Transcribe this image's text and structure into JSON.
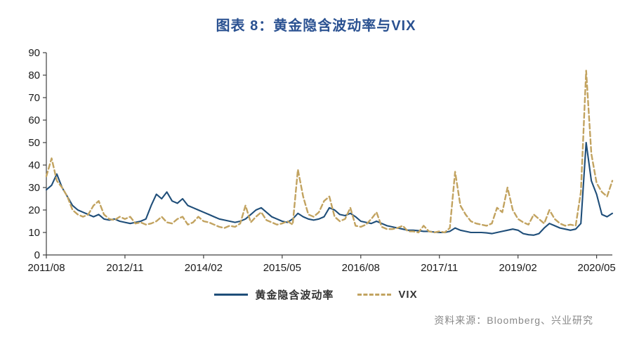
{
  "title": "图表 8：黄金隐含波动率与VIX",
  "source": "资料来源：Bloomberg、兴业研究",
  "colors": {
    "title": "#2a5191",
    "gold_iv_line": "#1F4E79",
    "vix_line": "#C2A360",
    "axis": "#404040",
    "tick_label": "#1a1a1a",
    "source_text": "#888888"
  },
  "chart_data": {
    "type": "line",
    "title": "图表 8：黄金隐含波动率与VIX",
    "xlabel": "",
    "ylabel": "",
    "ylim": [
      0,
      90
    ],
    "y_ticks": [
      0,
      10,
      20,
      30,
      40,
      50,
      60,
      70,
      80,
      90
    ],
    "grid": false,
    "legend_position": "bottom",
    "x_unit": "month-index from 2011/08",
    "x_ticks": [
      {
        "index": 0,
        "label": "2011/08"
      },
      {
        "index": 15,
        "label": "2012/11"
      },
      {
        "index": 30,
        "label": "2014/02"
      },
      {
        "index": 45,
        "label": "2015/05"
      },
      {
        "index": 60,
        "label": "2016/08"
      },
      {
        "index": 75,
        "label": "2017/11"
      },
      {
        "index": 90,
        "label": "2019/02"
      },
      {
        "index": 105,
        "label": "2020/05"
      }
    ],
    "series": [
      {
        "name": "黄金隐含波动率",
        "style": "solid",
        "color": "#1F4E79",
        "values": [
          29,
          31,
          36,
          30,
          26,
          22,
          20,
          19,
          18,
          17,
          18,
          16,
          15.5,
          16,
          15,
          14.5,
          14,
          14.5,
          15,
          16,
          22,
          27,
          25,
          28,
          24,
          23,
          25,
          22,
          21,
          20,
          19,
          18,
          17,
          16,
          15.5,
          15,
          14.5,
          15,
          16,
          18,
          20,
          21,
          19,
          17,
          16,
          15,
          14.5,
          16,
          18.5,
          17,
          16,
          15.5,
          16,
          17,
          21,
          20,
          18,
          17.5,
          18.5,
          17,
          15,
          14.5,
          14,
          15,
          14,
          13,
          12.5,
          12,
          11.5,
          11,
          11,
          10.8,
          10.5,
          10.5,
          10.2,
          10,
          10,
          10.5,
          12,
          11,
          10.5,
          10,
          10,
          10,
          9.8,
          9.5,
          10,
          10.5,
          11,
          11.5,
          11,
          9.5,
          9,
          8.8,
          9.5,
          12,
          14,
          13,
          12,
          11.5,
          11,
          11.5,
          14,
          50,
          33,
          27,
          18,
          17,
          18.5
        ]
      },
      {
        "name": "VIX",
        "style": "dashed",
        "color": "#C2A360",
        "values": [
          35,
          43,
          33,
          30,
          26,
          20,
          18,
          17,
          18,
          22,
          24,
          18,
          16,
          15.5,
          17,
          16,
          17,
          14,
          14.5,
          13.5,
          14,
          15,
          17,
          14.5,
          14,
          16,
          17,
          13.5,
          14.5,
          17,
          15,
          14.5,
          13.5,
          12.5,
          12,
          13,
          12.5,
          14,
          22,
          14.5,
          17,
          19,
          15.5,
          14.5,
          13.5,
          14,
          15,
          13.5,
          38,
          26,
          18,
          17,
          19,
          24,
          26,
          17,
          15,
          16,
          21,
          13,
          12.5,
          13.5,
          16,
          19,
          12.5,
          11.5,
          11.5,
          12,
          13,
          10.5,
          10.5,
          10,
          13,
          10.5,
          10,
          10.5,
          10,
          12,
          37,
          22,
          18,
          15,
          14,
          13.5,
          13,
          14,
          21,
          19,
          30,
          20,
          16,
          14.5,
          13.5,
          18,
          16,
          14,
          20,
          16,
          14,
          13,
          13.5,
          13,
          28,
          82,
          45,
          32,
          28,
          26,
          33
        ]
      }
    ]
  }
}
